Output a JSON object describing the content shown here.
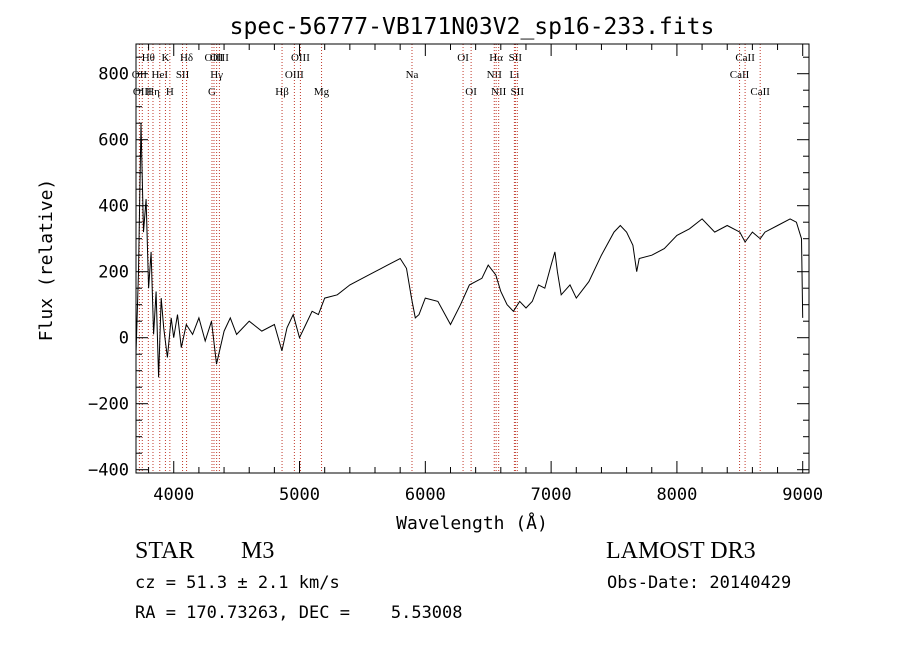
{
  "chart_data": {
    "type": "line",
    "title": "spec-56777-VB171N03V2_sp16-233.fits",
    "xlabel": "Wavelength (Å)",
    "ylabel": "Flux (relative)",
    "xlim": [
      3700,
      9050
    ],
    "ylim": [
      -410,
      890
    ],
    "xticks": [
      4000,
      5000,
      6000,
      7000,
      8000,
      9000
    ],
    "xtick_labels": [
      "4000",
      "5000",
      "6000",
      "7000",
      "8000",
      "9000"
    ],
    "yticks": [
      -400,
      -200,
      0,
      200,
      400,
      600,
      800
    ],
    "ytick_labels": [
      "−400",
      "−200",
      "0",
      "200",
      "400",
      "600",
      "800"
    ],
    "grid": false,
    "series": [
      {
        "name": "flux",
        "color": "#000000",
        "x": [
          3700,
          3720,
          3740,
          3760,
          3780,
          3800,
          3820,
          3840,
          3860,
          3880,
          3900,
          3920,
          3950,
          3980,
          4000,
          4030,
          4060,
          4100,
          4150,
          4200,
          4250,
          4300,
          4340,
          4400,
          4450,
          4500,
          4600,
          4700,
          4800,
          4860,
          4900,
          4950,
          5000,
          5050,
          5100,
          5150,
          5200,
          5300,
          5400,
          5500,
          5600,
          5700,
          5800,
          5850,
          5890,
          5920,
          5950,
          6000,
          6100,
          6200,
          6280,
          6350,
          6450,
          6500,
          6560,
          6600,
          6650,
          6700,
          6750,
          6800,
          6850,
          6900,
          6950,
          7000,
          7030,
          7050,
          7080,
          7150,
          7200,
          7300,
          7400,
          7500,
          7550,
          7600,
          7650,
          7680,
          7700,
          7800,
          7900,
          8000,
          8100,
          8200,
          8300,
          8400,
          8500,
          8542,
          8600,
          8662,
          8700,
          8800,
          8900,
          8950,
          8990,
          9000
        ],
        "y": [
          -50,
          200,
          650,
          320,
          420,
          150,
          260,
          10,
          140,
          -120,
          120,
          30,
          -60,
          60,
          0,
          70,
          -30,
          40,
          10,
          60,
          -10,
          50,
          -80,
          20,
          60,
          10,
          50,
          20,
          40,
          -40,
          30,
          70,
          0,
          40,
          80,
          70,
          120,
          130,
          160,
          180,
          200,
          220,
          240,
          210,
          120,
          60,
          70,
          120,
          110,
          40,
          100,
          160,
          180,
          220,
          190,
          140,
          100,
          80,
          110,
          90,
          110,
          160,
          150,
          220,
          260,
          200,
          130,
          160,
          120,
          170,
          250,
          320,
          340,
          320,
          280,
          200,
          240,
          250,
          270,
          310,
          330,
          360,
          320,
          340,
          320,
          290,
          320,
          300,
          320,
          340,
          360,
          350,
          300,
          60
        ]
      }
    ],
    "lines": [
      {
        "label": "Hθ",
        "x": 3798,
        "row": 1
      },
      {
        "label": "OII",
        "x": 3727,
        "row": 2
      },
      {
        "label": "OIII",
        "x": 3750,
        "row": 3
      },
      {
        "label": "Hη",
        "x": 3835,
        "row": 3
      },
      {
        "label": "HeI",
        "x": 3889,
        "row": 2
      },
      {
        "label": "K",
        "x": 3934,
        "row": 1
      },
      {
        "label": "H",
        "x": 3969,
        "row": 3
      },
      {
        "label": "SII",
        "x": 4070,
        "row": 2
      },
      {
        "label": "Hδ",
        "x": 4102,
        "row": 1
      },
      {
        "label": "G",
        "x": 4304,
        "row": 3
      },
      {
        "label": "OIII",
        "x": 4320,
        "row": 1
      },
      {
        "label": "Hγ",
        "x": 4341,
        "row": 2
      },
      {
        "label": "OIII",
        "x": 4363,
        "row": 1
      },
      {
        "label": "Hβ",
        "x": 4861,
        "row": 3
      },
      {
        "label": "OIII",
        "x": 4959,
        "row": 2
      },
      {
        "label": "OIII",
        "x": 5007,
        "row": 1
      },
      {
        "label": "Mg",
        "x": 5175,
        "row": 3
      },
      {
        "label": "Na",
        "x": 5894,
        "row": 2
      },
      {
        "label": "OI",
        "x": 6300,
        "row": 1
      },
      {
        "label": "OI",
        "x": 6364,
        "row": 3
      },
      {
        "label": "NII",
        "x": 6548,
        "row": 2
      },
      {
        "label": "Hα",
        "x": 6563,
        "row": 1
      },
      {
        "label": "NII",
        "x": 6583,
        "row": 3
      },
      {
        "label": "Li",
        "x": 6708,
        "row": 2
      },
      {
        "label": "SII",
        "x": 6716,
        "row": 1
      },
      {
        "label": "SII",
        "x": 6731,
        "row": 3
      },
      {
        "label": "CaII",
        "x": 8498,
        "row": 2
      },
      {
        "label": "CaII",
        "x": 8542,
        "row": 1
      },
      {
        "label": "CaII",
        "x": 8662,
        "row": 3
      }
    ],
    "line_color": "#c0392b"
  },
  "footer": {
    "class_label": "STAR",
    "subclass": "M3",
    "survey": "LAMOST DR3",
    "redshift": "cz = 51.3 ± 2.1 km/s",
    "obs_date": "Obs-Date: 20140429",
    "coords": "RA = 170.73263, DEC =    5.53008"
  }
}
